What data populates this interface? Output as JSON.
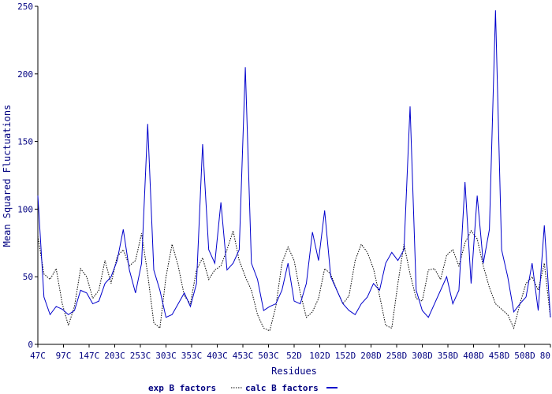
{
  "chart_data": {
    "type": "line",
    "title": "",
    "xlabel": "Residues",
    "ylabel": "Mean Squared Fluctuations",
    "ylim": [
      0,
      250
    ],
    "y_ticks": [
      0,
      50,
      100,
      150,
      200,
      250
    ],
    "x_tick_labels": [
      "47C",
      "97C",
      "147C",
      "203C",
      "253C",
      "303C",
      "353C",
      "403C",
      "453C",
      "503C",
      "52D",
      "102D",
      "152D",
      "208D",
      "258D",
      "308D",
      "358D",
      "408D",
      "458D",
      "508D",
      "80"
    ],
    "grid": false,
    "legend_position": "bottom-center",
    "series": [
      {
        "name": "exp B factors",
        "style": "dotted",
        "color": "#000000",
        "points": [
          [
            0,
            80
          ],
          [
            1,
            52
          ],
          [
            2,
            48
          ],
          [
            3,
            56
          ],
          [
            4,
            30
          ],
          [
            5,
            14
          ],
          [
            6,
            28
          ],
          [
            7,
            56
          ],
          [
            8,
            50
          ],
          [
            9,
            34
          ],
          [
            10,
            40
          ],
          [
            11,
            62
          ],
          [
            12,
            45
          ],
          [
            13,
            65
          ],
          [
            14,
            70
          ],
          [
            15,
            58
          ],
          [
            16,
            62
          ],
          [
            17,
            82
          ],
          [
            18,
            52
          ],
          [
            19,
            16
          ],
          [
            20,
            12
          ],
          [
            21,
            50
          ],
          [
            22,
            74
          ],
          [
            23,
            58
          ],
          [
            24,
            36
          ],
          [
            25,
            30
          ],
          [
            26,
            55
          ],
          [
            27,
            64
          ],
          [
            28,
            48
          ],
          [
            29,
            55
          ],
          [
            30,
            58
          ],
          [
            31,
            70
          ],
          [
            32,
            84
          ],
          [
            33,
            62
          ],
          [
            34,
            50
          ],
          [
            35,
            40
          ],
          [
            36,
            22
          ],
          [
            37,
            12
          ],
          [
            38,
            10
          ],
          [
            39,
            28
          ],
          [
            40,
            60
          ],
          [
            41,
            72
          ],
          [
            42,
            62
          ],
          [
            43,
            38
          ],
          [
            44,
            20
          ],
          [
            45,
            24
          ],
          [
            46,
            34
          ],
          [
            47,
            56
          ],
          [
            48,
            52
          ],
          [
            49,
            40
          ],
          [
            50,
            30
          ],
          [
            51,
            36
          ],
          [
            52,
            62
          ],
          [
            53,
            74
          ],
          [
            54,
            68
          ],
          [
            55,
            56
          ],
          [
            56,
            36
          ],
          [
            57,
            14
          ],
          [
            58,
            12
          ],
          [
            59,
            45
          ],
          [
            60,
            74
          ],
          [
            61,
            52
          ],
          [
            62,
            34
          ],
          [
            63,
            32
          ],
          [
            64,
            55
          ],
          [
            65,
            56
          ],
          [
            66,
            48
          ],
          [
            67,
            66
          ],
          [
            68,
            70
          ],
          [
            69,
            58
          ],
          [
            70,
            75
          ],
          [
            71,
            84
          ],
          [
            72,
            78
          ],
          [
            73,
            58
          ],
          [
            74,
            42
          ],
          [
            75,
            30
          ],
          [
            76,
            26
          ],
          [
            77,
            22
          ],
          [
            78,
            12
          ],
          [
            79,
            30
          ],
          [
            80,
            45
          ],
          [
            81,
            50
          ],
          [
            82,
            40
          ],
          [
            83,
            60
          ],
          [
            84,
            20
          ]
        ]
      },
      {
        "name": "calc B factors",
        "style": "solid",
        "color": "#0000CC",
        "points": [
          [
            0,
            110
          ],
          [
            1,
            35
          ],
          [
            2,
            22
          ],
          [
            3,
            28
          ],
          [
            4,
            26
          ],
          [
            5,
            22
          ],
          [
            6,
            25
          ],
          [
            7,
            40
          ],
          [
            8,
            38
          ],
          [
            9,
            30
          ],
          [
            10,
            32
          ],
          [
            11,
            45
          ],
          [
            12,
            50
          ],
          [
            13,
            62
          ],
          [
            14,
            85
          ],
          [
            15,
            55
          ],
          [
            16,
            38
          ],
          [
            17,
            60
          ],
          [
            18,
            163
          ],
          [
            19,
            55
          ],
          [
            20,
            40
          ],
          [
            21,
            20
          ],
          [
            22,
            22
          ],
          [
            23,
            30
          ],
          [
            24,
            38
          ],
          [
            25,
            28
          ],
          [
            26,
            45
          ],
          [
            27,
            148
          ],
          [
            28,
            70
          ],
          [
            29,
            60
          ],
          [
            30,
            105
          ],
          [
            31,
            55
          ],
          [
            32,
            60
          ],
          [
            33,
            70
          ],
          [
            34,
            205
          ],
          [
            35,
            60
          ],
          [
            36,
            48
          ],
          [
            37,
            25
          ],
          [
            38,
            28
          ],
          [
            39,
            30
          ],
          [
            40,
            40
          ],
          [
            41,
            60
          ],
          [
            42,
            32
          ],
          [
            43,
            30
          ],
          [
            44,
            45
          ],
          [
            45,
            83
          ],
          [
            46,
            62
          ],
          [
            47,
            99
          ],
          [
            48,
            50
          ],
          [
            49,
            40
          ],
          [
            50,
            30
          ],
          [
            51,
            25
          ],
          [
            52,
            22
          ],
          [
            53,
            30
          ],
          [
            54,
            35
          ],
          [
            55,
            45
          ],
          [
            56,
            40
          ],
          [
            57,
            60
          ],
          [
            58,
            68
          ],
          [
            59,
            62
          ],
          [
            60,
            70
          ],
          [
            61,
            176
          ],
          [
            62,
            40
          ],
          [
            63,
            25
          ],
          [
            64,
            20
          ],
          [
            65,
            30
          ],
          [
            66,
            40
          ],
          [
            67,
            50
          ],
          [
            68,
            30
          ],
          [
            69,
            40
          ],
          [
            70,
            120
          ],
          [
            71,
            45
          ],
          [
            72,
            110
          ],
          [
            73,
            60
          ],
          [
            74,
            85
          ],
          [
            75,
            247
          ],
          [
            76,
            70
          ],
          [
            77,
            50
          ],
          [
            78,
            24
          ],
          [
            79,
            30
          ],
          [
            80,
            35
          ],
          [
            81,
            60
          ],
          [
            82,
            25
          ],
          [
            83,
            88
          ],
          [
            84,
            20
          ]
        ]
      }
    ]
  }
}
